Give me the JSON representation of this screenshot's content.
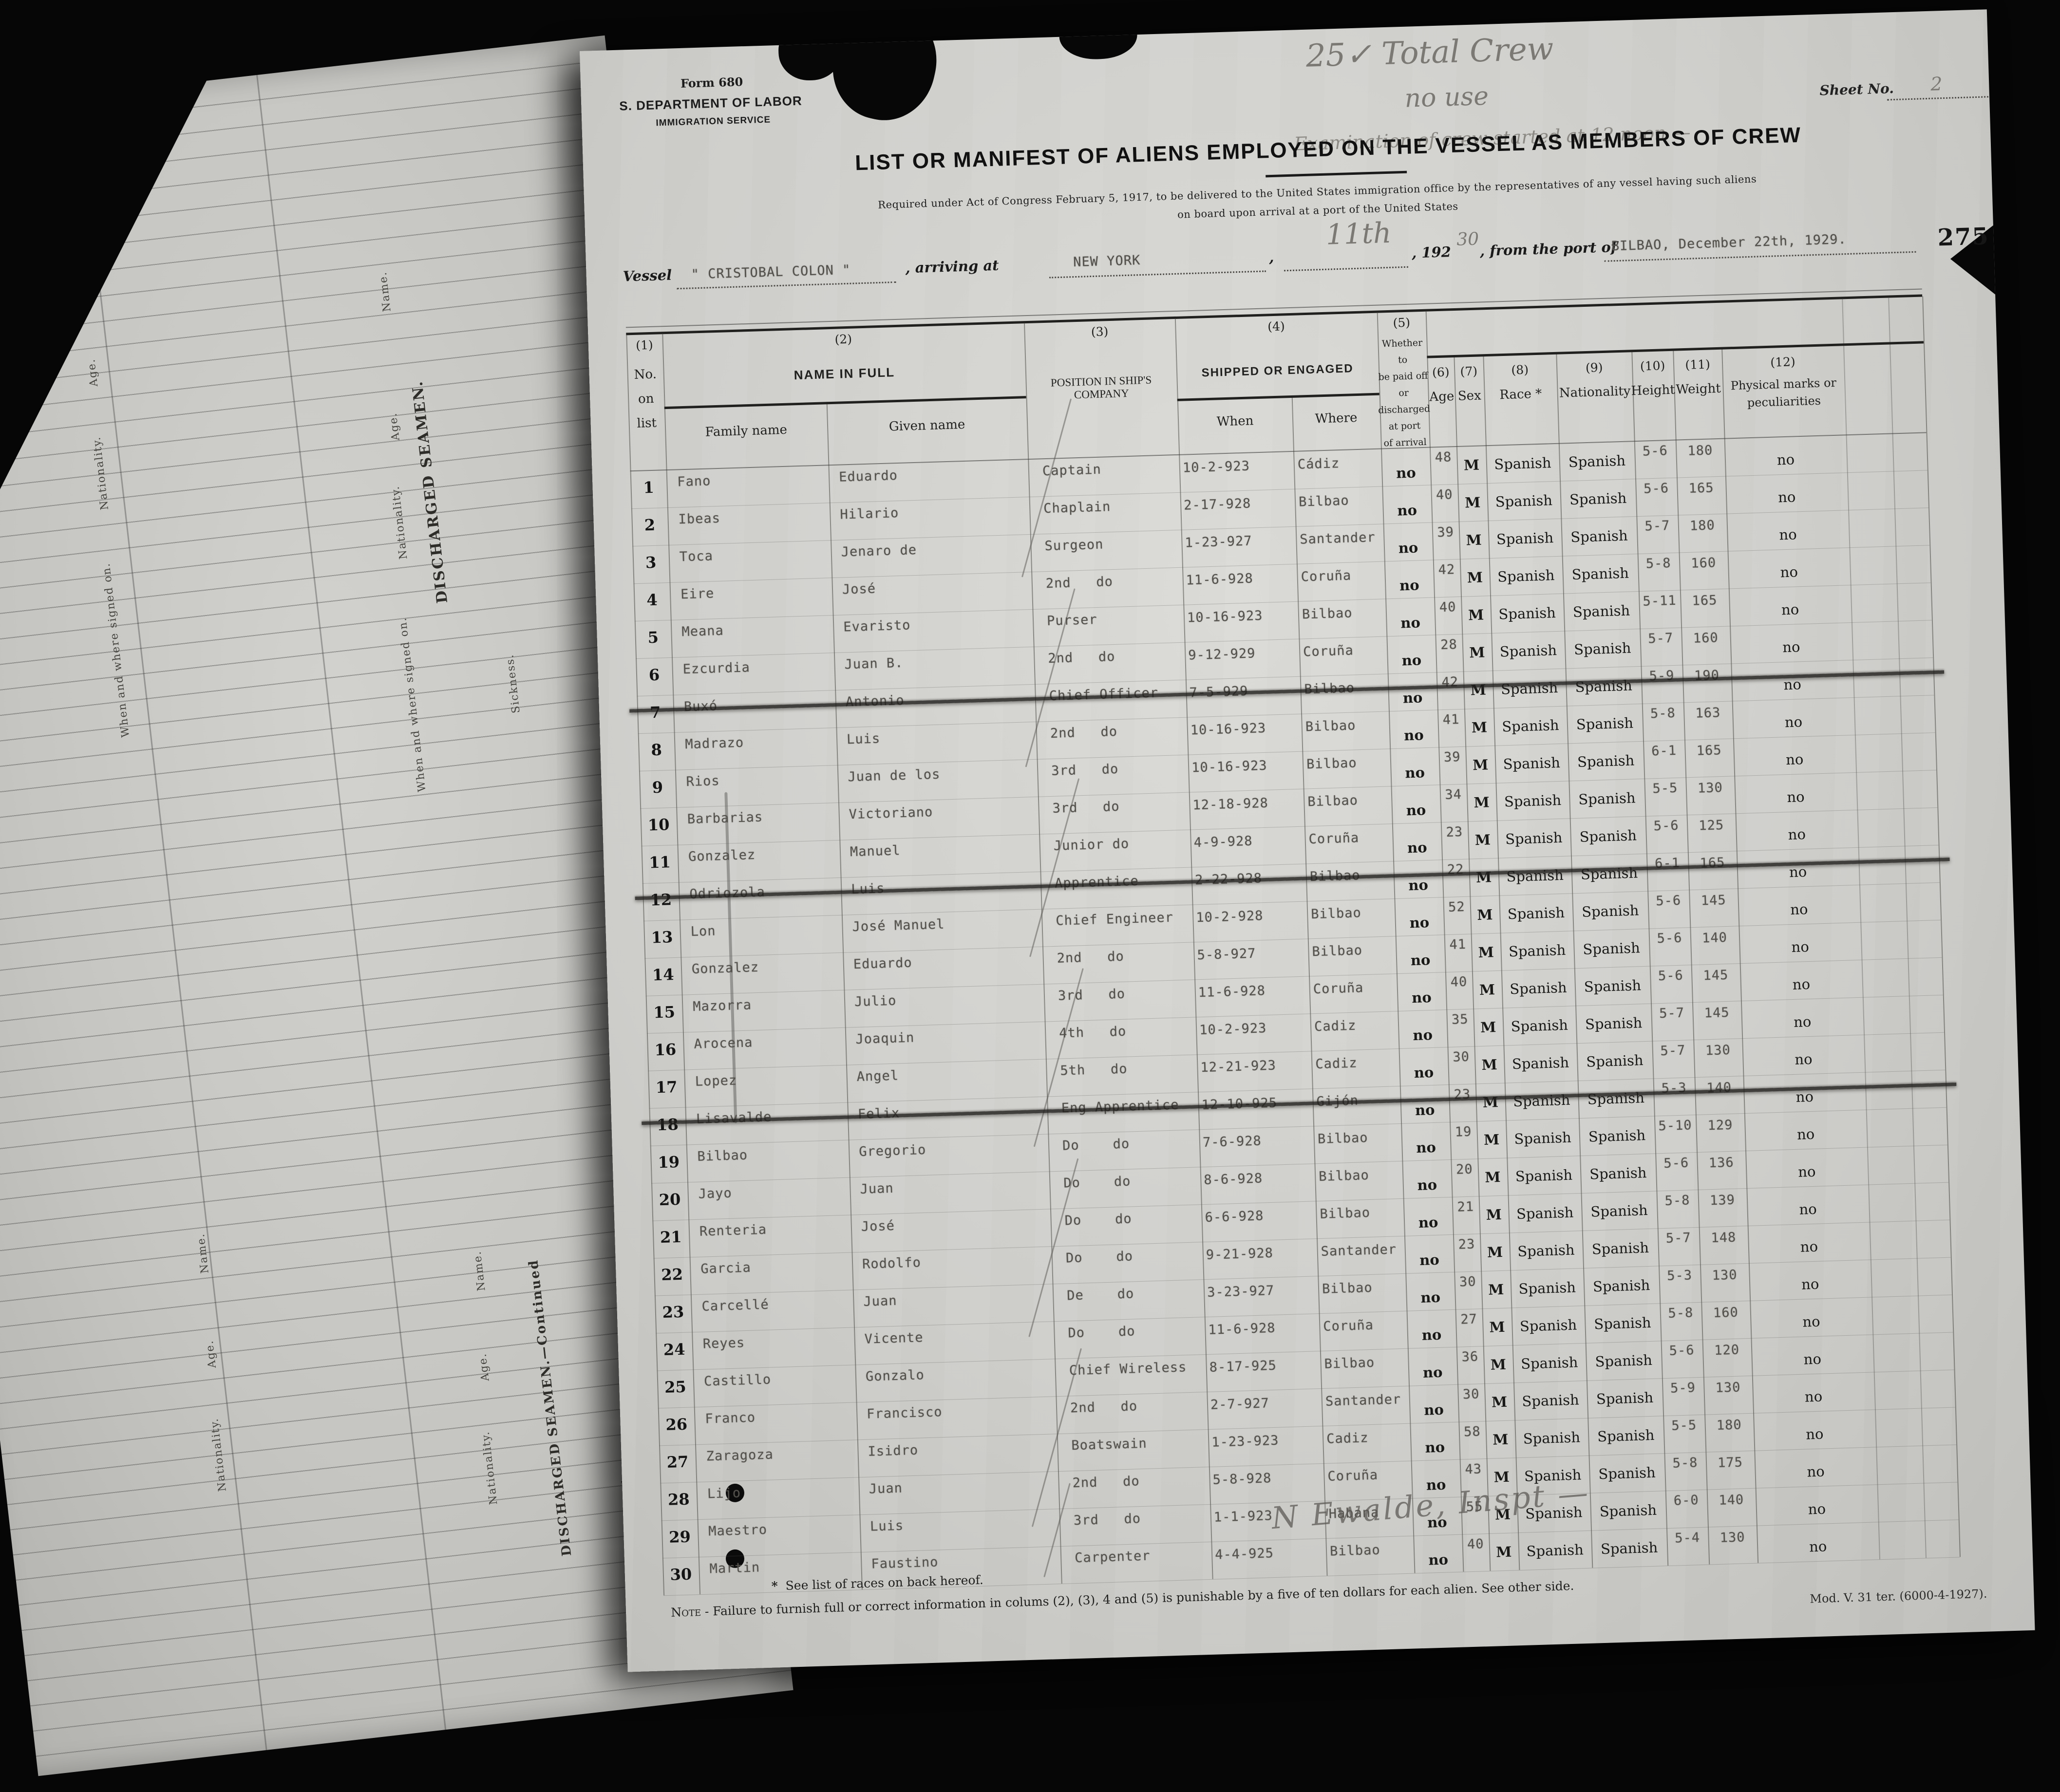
{
  "form": {
    "form_no": "Form 680",
    "department": "S. DEPARTMENT OF LABOR",
    "service": "IMMIGRATION SERVICE",
    "title": "LIST OR MANIFEST OF ALIENS EMPLOYED ON THE VESSEL AS MEMBERS OF CREW",
    "subtitle1": "Required under Act of Congress February 5, 1917, to be delivered to the United States immigration office by the representatives of any vessel having such aliens",
    "subtitle2": "on board upon arrival at a port of the United States",
    "sheet_label": "Sheet No.",
    "page_stamp": "275",
    "mod_line": "Mod. V. 31 ter. (6000-4-1927)."
  },
  "annotations": {
    "total_crew": "25✓ Total Crew",
    "no_use": "no use",
    "exam_note": "Examination of crew started at 12 noon —",
    "arrival_day": "11th",
    "year_suffix": "30",
    "sheet_no": "2",
    "signature": "N Ewalde, Inspt —"
  },
  "vessel": {
    "label": "Vessel",
    "name": "\" CRISTOBAL COLON \"",
    "arriving_label": ", arriving at",
    "port": "NEW YORK",
    "comma": ",",
    "year_prefix": ", 192",
    "from_label": ", from the port of",
    "from_value": "BILBAO,  December 22th, 1929."
  },
  "table": {
    "numbers": {
      "c1": "(1)",
      "c2": "(2)",
      "c3": "(3)",
      "c4": "(4)",
      "c5": "(5)",
      "c6": "(6)",
      "c7": "(7)",
      "c8": "(8)",
      "c9": "(9)",
      "c10": "(10)",
      "c11": "(11)",
      "c12": "(12)"
    },
    "labels": {
      "no1": "No.",
      "no2": "on",
      "no3": "list",
      "name_in_full": "NAME IN FULL",
      "family": "Family name",
      "given": "Given name",
      "position": "POSITION IN SHIP'S COMPANY",
      "shipped": "SHIPPED OR ENGAGED",
      "when": "When",
      "where": "Where",
      "paid1": "Whether to",
      "paid2": "be paid off",
      "paid3": "or",
      "paid4": "discharged",
      "paid5": "at port",
      "paid6": "of arrival",
      "age": "Age",
      "sex": "Sex",
      "race": "Race *",
      "nationality": "Nationality",
      "height": "Height",
      "weight": "Weight",
      "marks1": "Physical marks or",
      "marks2": "peculiarities"
    },
    "rows": [
      {
        "no": "1",
        "family": "Fano",
        "given": "Eduardo",
        "position": "Captain",
        "when": "10-2-923",
        "where": "Cádiz",
        "paid": "no",
        "age": "48",
        "sex": "M",
        "race": "Spanish",
        "nat": "Spanish",
        "height": "5-6",
        "weight": "180",
        "marks": "no",
        "struck": false
      },
      {
        "no": "2",
        "family": "Ibeas",
        "given": "Hilario",
        "position": "Chaplain",
        "when": "2-17-928",
        "where": "Bilbao",
        "paid": "no",
        "age": "40",
        "sex": "M",
        "race": "Spanish",
        "nat": "Spanish",
        "height": "5-6",
        "weight": "165",
        "marks": "no",
        "struck": false
      },
      {
        "no": "3",
        "family": "Toca",
        "given": "Jenaro de",
        "position": "Surgeon",
        "when": "1-23-927",
        "where": "Santander",
        "paid": "no",
        "age": "39",
        "sex": "M",
        "race": "Spanish",
        "nat": "Spanish",
        "height": "5-7",
        "weight": "180",
        "marks": "no",
        "struck": false
      },
      {
        "no": "4",
        "family": "Eire",
        "given": "José",
        "position": "2nd   do",
        "when": "11-6-928",
        "where": "Coruña",
        "paid": "no",
        "age": "42",
        "sex": "M",
        "race": "Spanish",
        "nat": "Spanish",
        "height": "5-8",
        "weight": "160",
        "marks": "no",
        "struck": false
      },
      {
        "no": "5",
        "family": "Meana",
        "given": "Evaristo",
        "position": "Purser",
        "when": "10-16-923",
        "where": "Bilbao",
        "paid": "no",
        "age": "40",
        "sex": "M",
        "race": "Spanish",
        "nat": "Spanish",
        "height": "5-11",
        "weight": "165",
        "marks": "no",
        "struck": false
      },
      {
        "no": "6",
        "family": "Ezcurdia",
        "given": "Juan B.",
        "position": "2nd   do",
        "when": "9-12-929",
        "where": "Coruña",
        "paid": "no",
        "age": "28",
        "sex": "M",
        "race": "Spanish",
        "nat": "Spanish",
        "height": "5-7",
        "weight": "160",
        "marks": "no",
        "struck": false
      },
      {
        "no": "7",
        "family": "Buxó",
        "given": "Antonio",
        "position": "Chief Officer",
        "when": "7-5-929",
        "where": "Bilbao",
        "paid": "no",
        "age": "42",
        "sex": "M",
        "race": "Spanish",
        "nat": "Spanish",
        "height": "5-9",
        "weight": "190",
        "marks": "no",
        "struck": true
      },
      {
        "no": "8",
        "family": "Madrazo",
        "given": "Luis",
        "position": "2nd   do",
        "when": "10-16-923",
        "where": "Bilbao",
        "paid": "no",
        "age": "41",
        "sex": "M",
        "race": "Spanish",
        "nat": "Spanish",
        "height": "5-8",
        "weight": "163",
        "marks": "no",
        "struck": false
      },
      {
        "no": "9",
        "family": "Rios",
        "given": "Juan de los",
        "position": "3rd   do",
        "when": "10-16-923",
        "where": "Bilbao",
        "paid": "no",
        "age": "39",
        "sex": "M",
        "race": "Spanish",
        "nat": "Spanish",
        "height": "6-1",
        "weight": "165",
        "marks": "no",
        "struck": false
      },
      {
        "no": "10",
        "family": "Barbarias",
        "given": "Victoriano",
        "position": "3rd   do",
        "when": "12-18-928",
        "where": "Bilbao",
        "paid": "no",
        "age": "34",
        "sex": "M",
        "race": "Spanish",
        "nat": "Spanish",
        "height": "5-5",
        "weight": "130",
        "marks": "no",
        "struck": false
      },
      {
        "no": "11",
        "family": "Gonzalez",
        "given": "Manuel",
        "position": "Junior do",
        "when": "4-9-928",
        "where": "Coruña",
        "paid": "no",
        "age": "23",
        "sex": "M",
        "race": "Spanish",
        "nat": "Spanish",
        "height": "5-6",
        "weight": "125",
        "marks": "no",
        "struck": false
      },
      {
        "no": "12",
        "family": "Odriozola",
        "given": "Luis",
        "position": "Apprentice",
        "when": "2-22-928",
        "where": "Bilbao",
        "paid": "no",
        "age": "22",
        "sex": "M",
        "race": "Spanish",
        "nat": "Spanish",
        "height": "6-1",
        "weight": "165",
        "marks": "no",
        "struck": true
      },
      {
        "no": "13",
        "family": "Lon",
        "given": "José Manuel",
        "position": "Chief Engineer",
        "when": "10-2-928",
        "where": "Bilbao",
        "paid": "no",
        "age": "52",
        "sex": "M",
        "race": "Spanish",
        "nat": "Spanish",
        "height": "5-6",
        "weight": "145",
        "marks": "no",
        "struck": false
      },
      {
        "no": "14",
        "family": "Gonzalez",
        "given": "Eduardo",
        "position": "2nd   do",
        "when": "5-8-927",
        "where": "Bilbao",
        "paid": "no",
        "age": "41",
        "sex": "M",
        "race": "Spanish",
        "nat": "Spanish",
        "height": "5-6",
        "weight": "140",
        "marks": "no",
        "struck": false
      },
      {
        "no": "15",
        "family": "Mazorra",
        "given": "Julio",
        "position": "3rd   do",
        "when": "11-6-928",
        "where": "Coruña",
        "paid": "no",
        "age": "40",
        "sex": "M",
        "race": "Spanish",
        "nat": "Spanish",
        "height": "5-6",
        "weight": "145",
        "marks": "no",
        "struck": false
      },
      {
        "no": "16",
        "family": "Arocena",
        "given": "Joaquin",
        "position": "4th   do",
        "when": "10-2-923",
        "where": "Cadiz",
        "paid": "no",
        "age": "35",
        "sex": "M",
        "race": "Spanish",
        "nat": "Spanish",
        "height": "5-7",
        "weight": "145",
        "marks": "no",
        "struck": false
      },
      {
        "no": "17",
        "family": "Lopez",
        "given": "Angel",
        "position": "5th   do",
        "when": "12-21-923",
        "where": "Cadiz",
        "paid": "no",
        "age": "30",
        "sex": "M",
        "race": "Spanish",
        "nat": "Spanish",
        "height": "5-7",
        "weight": "130",
        "marks": "no",
        "struck": false
      },
      {
        "no": "18",
        "family": "Lisavalde",
        "given": "Felix",
        "position": "Eng Apprentice",
        "when": "12-10-925",
        "where": "Gijón",
        "paid": "no",
        "age": "23",
        "sex": "M",
        "race": "Spanish",
        "nat": "Spanish",
        "height": "5-3",
        "weight": "140",
        "marks": "no",
        "struck": true
      },
      {
        "no": "19",
        "family": "Bilbao",
        "given": "Gregorio",
        "position": "Do    do",
        "when": "7-6-928",
        "where": "Bilbao",
        "paid": "no",
        "age": "19",
        "sex": "M",
        "race": "Spanish",
        "nat": "Spanish",
        "height": "5-10",
        "weight": "129",
        "marks": "no",
        "struck": false
      },
      {
        "no": "20",
        "family": "Jayo",
        "given": "Juan",
        "position": "Do    do",
        "when": "8-6-928",
        "where": "Bilbao",
        "paid": "no",
        "age": "20",
        "sex": "M",
        "race": "Spanish",
        "nat": "Spanish",
        "height": "5-6",
        "weight": "136",
        "marks": "no",
        "struck": false
      },
      {
        "no": "21",
        "family": "Renteria",
        "given": "José",
        "position": "Do    do",
        "when": "6-6-928",
        "where": "Bilbao",
        "paid": "no",
        "age": "21",
        "sex": "M",
        "race": "Spanish",
        "nat": "Spanish",
        "height": "5-8",
        "weight": "139",
        "marks": "no",
        "struck": false
      },
      {
        "no": "22",
        "family": "Garcia",
        "given": "Rodolfo",
        "position": "Do    do",
        "when": "9-21-928",
        "where": "Santander",
        "paid": "no",
        "age": "23",
        "sex": "M",
        "race": "Spanish",
        "nat": "Spanish",
        "height": "5-7",
        "weight": "148",
        "marks": "no",
        "struck": false
      },
      {
        "no": "23",
        "family": "Carcellé",
        "given": "Juan",
        "position": "De    do",
        "when": "3-23-927",
        "where": "Bilbao",
        "paid": "no",
        "age": "30",
        "sex": "M",
        "race": "Spanish",
        "nat": "Spanish",
        "height": "5-3",
        "weight": "130",
        "marks": "no",
        "struck": false
      },
      {
        "no": "24",
        "family": "Reyes",
        "given": "Vicente",
        "position": "Do    do",
        "when": "11-6-928",
        "where": "Coruña",
        "paid": "no",
        "age": "27",
        "sex": "M",
        "race": "Spanish",
        "nat": "Spanish",
        "height": "5-8",
        "weight": "160",
        "marks": "no",
        "struck": false
      },
      {
        "no": "25",
        "family": "Castillo",
        "given": "Gonzalo",
        "position": "Chief Wireless",
        "when": "8-17-925",
        "where": "Bilbao",
        "paid": "no",
        "age": "36",
        "sex": "M",
        "race": "Spanish",
        "nat": "Spanish",
        "height": "5-6",
        "weight": "120",
        "marks": "no",
        "struck": false
      },
      {
        "no": "26",
        "family": "Franco",
        "given": "Francisco",
        "position": "2nd   do",
        "when": "2-7-927",
        "where": "Santander",
        "paid": "no",
        "age": "30",
        "sex": "M",
        "race": "Spanish",
        "nat": "Spanish",
        "height": "5-9",
        "weight": "130",
        "marks": "no",
        "struck": false
      },
      {
        "no": "27",
        "family": "Zaragoza",
        "given": "Isidro",
        "position": "Boatswain",
        "when": "1-23-923",
        "where": "Cadiz",
        "paid": "no",
        "age": "58",
        "sex": "M",
        "race": "Spanish",
        "nat": "Spanish",
        "height": "5-5",
        "weight": "180",
        "marks": "no",
        "struck": false
      },
      {
        "no": "28",
        "family": "Lijo",
        "given": "Juan",
        "position": "2nd   do",
        "when": "5-8-928",
        "where": "Coruña",
        "paid": "no",
        "age": "43",
        "sex": "M",
        "race": "Spanish",
        "nat": "Spanish",
        "height": "5-8",
        "weight": "175",
        "marks": "no",
        "struck": false
      },
      {
        "no": "29",
        "family": "Maestro",
        "given": "Luis",
        "position": "3rd   do",
        "when": "1-1-923",
        "where": "Habana",
        "paid": "no",
        "age": "55",
        "sex": "M",
        "race": "Spanish",
        "nat": "Spanish",
        "height": "6-0",
        "weight": "140",
        "marks": "no",
        "struck": false
      },
      {
        "no": "30",
        "family": "Martin",
        "given": "Faustino",
        "position": "Carpenter",
        "when": "4-4-925",
        "where": "Bilbao",
        "paid": "no",
        "age": "40",
        "sex": "M",
        "race": "Spanish",
        "nat": "Spanish",
        "height": "5-4",
        "weight": "130",
        "marks": "no",
        "struck": false
      }
    ]
  },
  "footnotes": {
    "star": "*",
    "races": "See list of races on back hereof.",
    "note_label": "Note",
    "note": "- Failure to furnish full or correct information in colums (2), (3), 4 and (5) is punishable by a five of ten dollars for each alien. See other side."
  },
  "left_page": {
    "name": "Name.",
    "age": "Age.",
    "nationality": "Nationality.",
    "signed": "When and where signed on.",
    "sickness": "Sickness.",
    "title": "DISCHARGED SEAMEN.",
    "title_cont": "DISCHARGED SEAMEN.—Continued"
  }
}
